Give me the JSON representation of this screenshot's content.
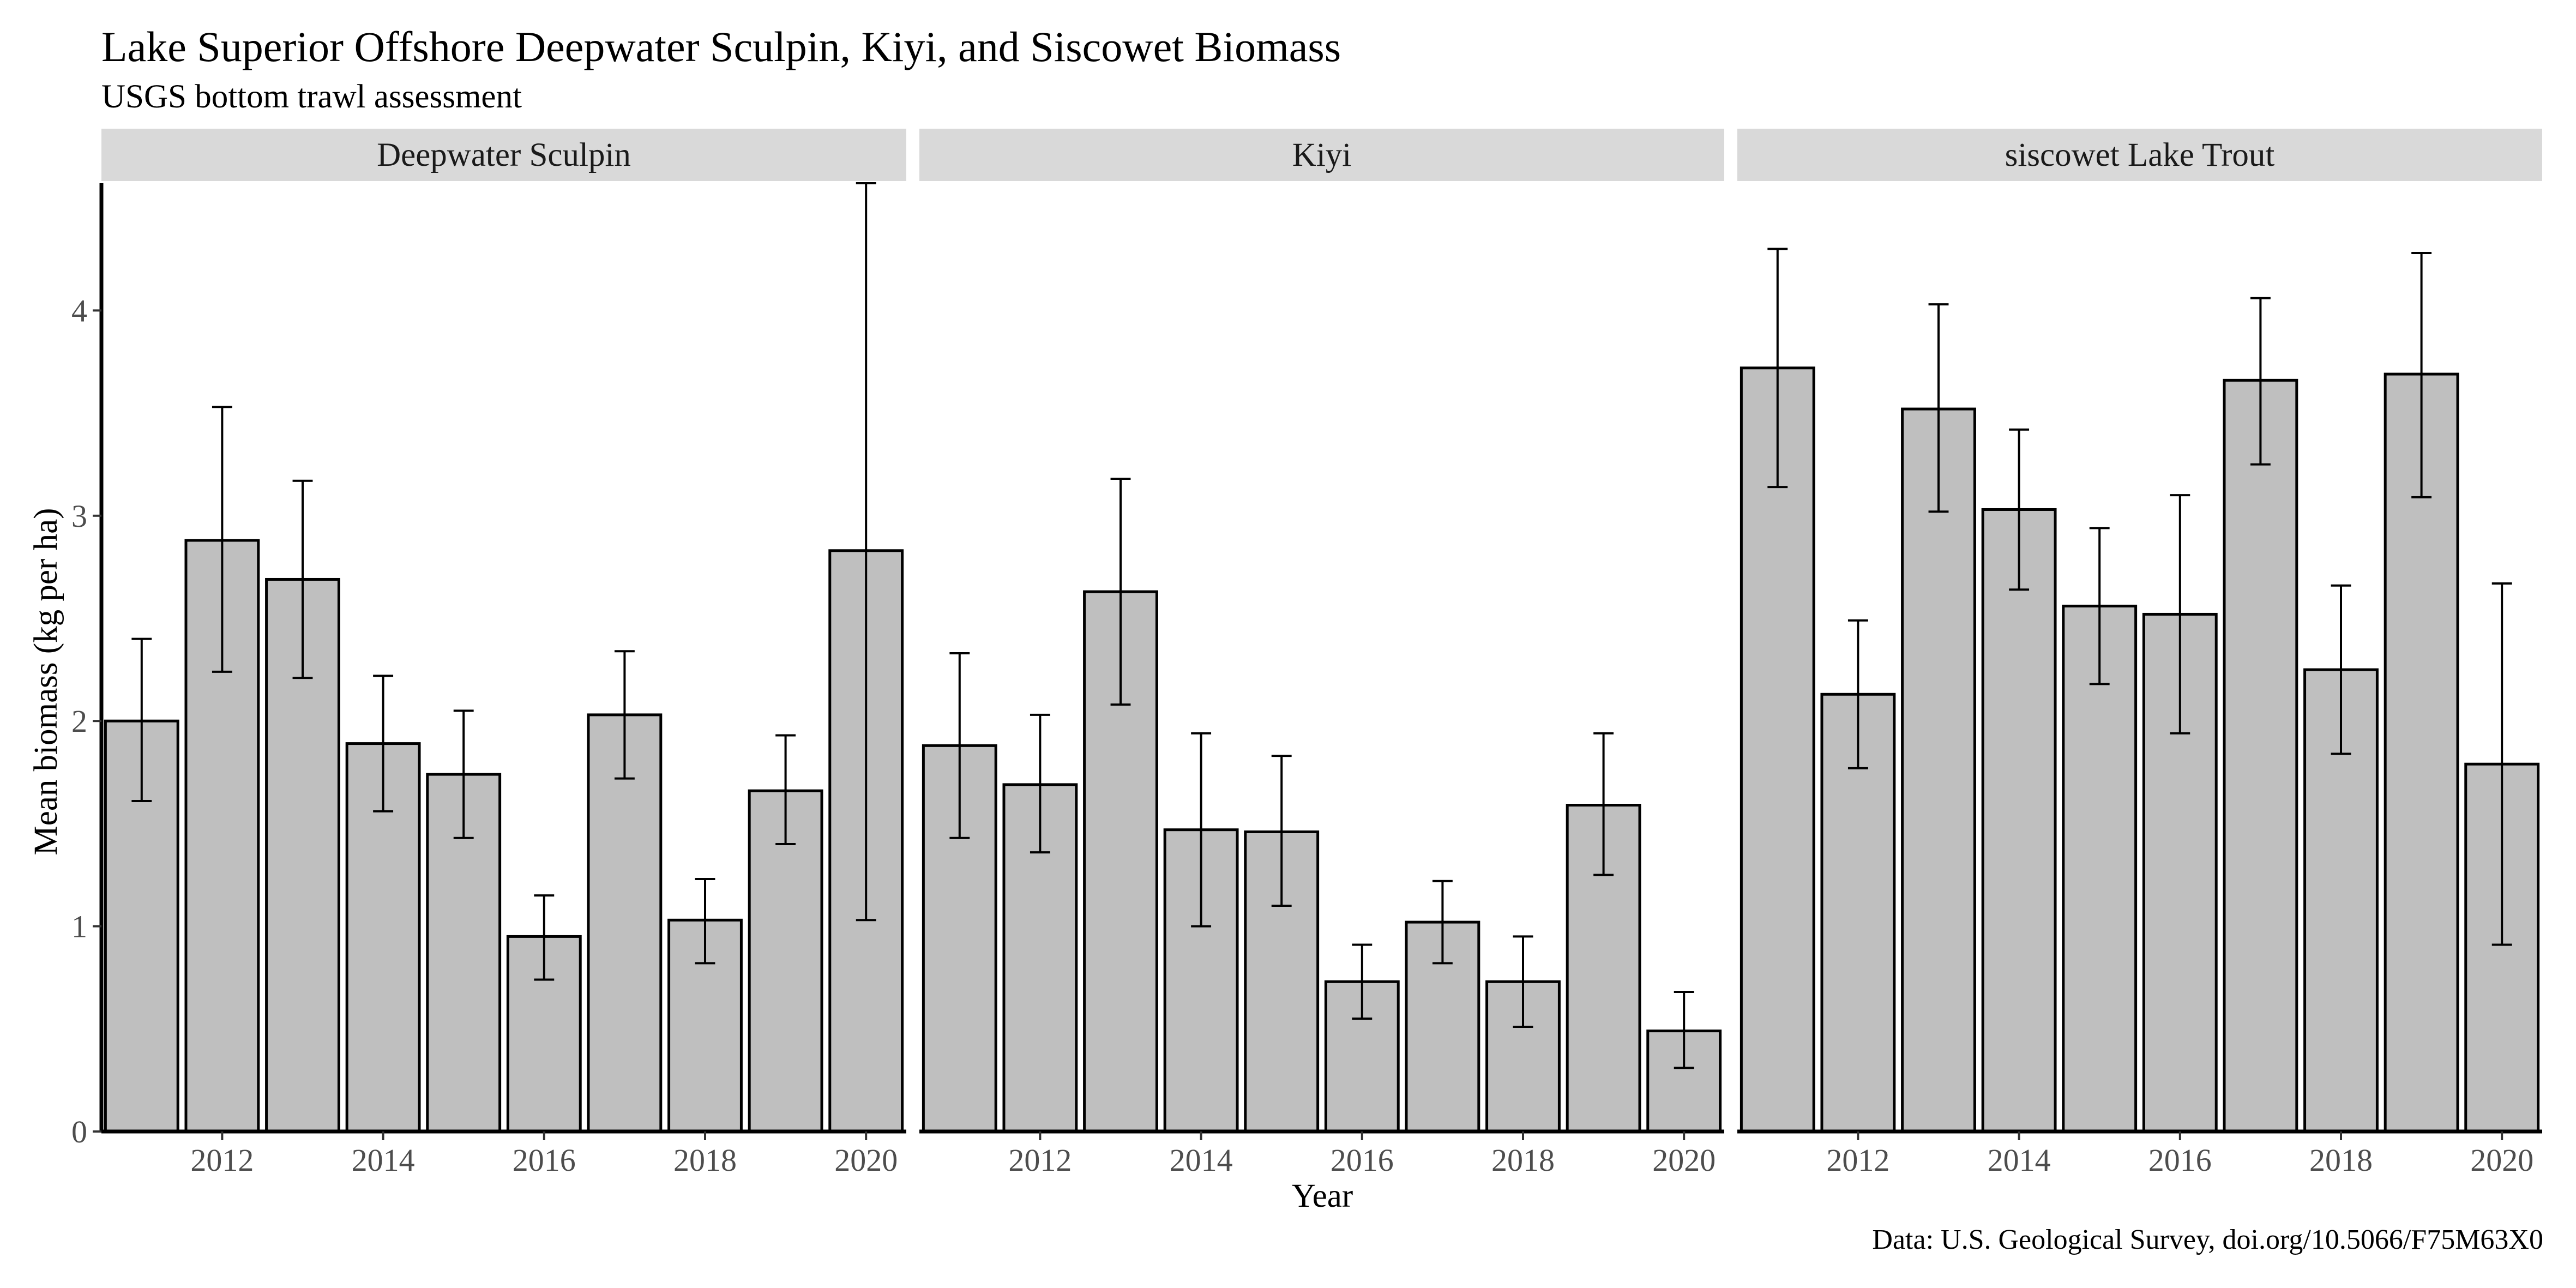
{
  "title": "Lake Superior Offshore Deepwater Sculpin, Kiyi, and Siscowet Biomass",
  "subtitle": "USGS bottom trawl assessment",
  "caption": "Data: U.S. Geological Survey, doi.org/10.5066/F75M63X0",
  "colors": {
    "bar_fill": "#bfbfbf",
    "bar_stroke": "#000000",
    "strip_fill": "#d9d9d9",
    "axis": "#000000"
  },
  "chart_data": {
    "type": "bar",
    "error_bars": true,
    "xlabel": "Year",
    "ylabel": "Mean biomass (kg per ha)",
    "ylim": [
      0,
      4.62
    ],
    "yticks": [
      0,
      1,
      2,
      3,
      4
    ],
    "xticks": [
      2012,
      2014,
      2016,
      2018,
      2020
    ],
    "xlim": [
      2010.5,
      2020.5
    ],
    "grid": false,
    "x": [
      2011,
      2012,
      2013,
      2014,
      2015,
      2016,
      2017,
      2018,
      2019,
      2020
    ],
    "facets": [
      {
        "name": "Deepwater Sculpin",
        "values": [
          2.0,
          2.88,
          2.69,
          1.89,
          1.74,
          0.95,
          2.03,
          1.03,
          1.66,
          2.83
        ],
        "lower": [
          1.61,
          2.24,
          2.21,
          1.56,
          1.43,
          0.74,
          1.72,
          0.82,
          1.4,
          1.03
        ],
        "upper": [
          2.4,
          3.53,
          3.17,
          2.22,
          2.05,
          1.15,
          2.34,
          1.23,
          1.93,
          4.62
        ]
      },
      {
        "name": "Kiyi",
        "values": [
          1.88,
          1.69,
          2.63,
          1.47,
          1.46,
          0.73,
          1.02,
          0.73,
          1.59,
          0.49
        ],
        "lower": [
          1.43,
          1.36,
          2.08,
          1.0,
          1.1,
          0.55,
          0.82,
          0.51,
          1.25,
          0.31
        ],
        "upper": [
          2.33,
          2.03,
          3.18,
          1.94,
          1.83,
          0.91,
          1.22,
          0.95,
          1.94,
          0.68
        ]
      },
      {
        "name": "siscowet Lake Trout",
        "values": [
          3.72,
          2.13,
          3.52,
          3.03,
          2.56,
          2.52,
          3.66,
          2.25,
          3.69,
          1.79
        ],
        "lower": [
          3.14,
          1.77,
          3.02,
          2.64,
          2.18,
          1.94,
          3.25,
          1.84,
          3.09,
          0.91
        ],
        "upper": [
          4.3,
          2.49,
          4.03,
          3.42,
          2.94,
          3.1,
          4.06,
          2.66,
          4.28,
          2.67
        ]
      }
    ]
  }
}
